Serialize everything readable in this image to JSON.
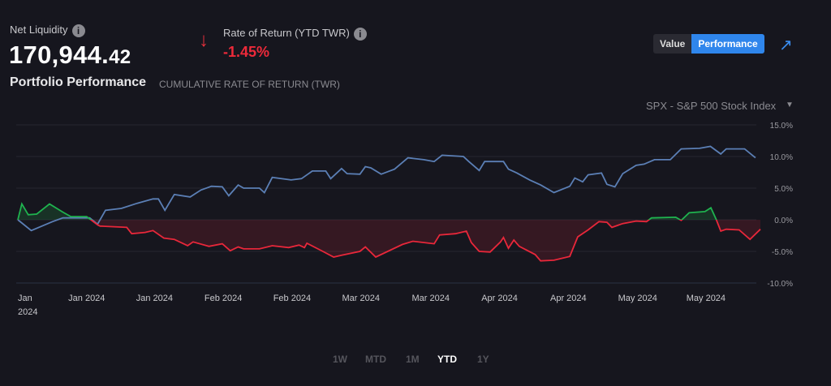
{
  "header": {
    "net_liquidity_label": "Net Liquidity",
    "net_liquidity_whole": "170,944.",
    "net_liquidity_cents": "42",
    "info_icon": "i",
    "ror_arrow": "↓",
    "ror_label": "Rate of Return (YTD TWR)",
    "ror_value": "-1.45%",
    "title": "Portfolio Performance",
    "subtitle": "CUMULATIVE RATE OF RETURN (TWR)"
  },
  "toggle": {
    "value_label": "Value",
    "performance_label": "Performance",
    "active": "Performance"
  },
  "expand_icon": "↗",
  "benchmark": {
    "selected": "SPX - S&P 500 Stock Index",
    "caret": "▼"
  },
  "ranges": [
    {
      "label": "1W",
      "active": false
    },
    {
      "label": "MTD",
      "active": false
    },
    {
      "label": "1M",
      "active": false
    },
    {
      "label": "YTD",
      "active": true
    },
    {
      "label": "1Y",
      "active": false
    }
  ],
  "colors": {
    "benchmark": "#5b7fb5",
    "positive": "#1fb34f",
    "negative": "#e8273a",
    "accent": "#2f86ec"
  },
  "chart_data": {
    "type": "line",
    "title": "Portfolio Performance",
    "ylabel": "Cumulative rate of return (%)",
    "ylim": [
      -10,
      15
    ],
    "xlim": [
      0,
      150
    ],
    "yticks": [
      {
        "v": 15,
        "label": "15.0%"
      },
      {
        "v": 10,
        "label": "10.0%"
      },
      {
        "v": 5,
        "label": "5.0%"
      },
      {
        "v": 0,
        "label": "0.0%"
      },
      {
        "v": -5,
        "label": "-5.0%"
      },
      {
        "v": -10,
        "label": "-10.0%"
      }
    ],
    "xticks": [
      {
        "d": 0,
        "label": "Jan",
        "label2": "2024"
      },
      {
        "d": 13.9,
        "label": "Jan 2024"
      },
      {
        "d": 27.6,
        "label": "Jan 2024"
      },
      {
        "d": 41.5,
        "label": "Feb 2024"
      },
      {
        "d": 55.4,
        "label": "Feb 2024"
      },
      {
        "d": 69.3,
        "label": "Mar 2024"
      },
      {
        "d": 83.4,
        "label": "Mar 2024"
      },
      {
        "d": 97.3,
        "label": "Apr 2024"
      },
      {
        "d": 111.2,
        "label": "Apr 2024"
      },
      {
        "d": 125.2,
        "label": "May 2024"
      },
      {
        "d": 139,
        "label": "May 2024"
      }
    ],
    "series": [
      {
        "name": "SPX - S&P 500 Stock Index",
        "x_days": [
          0,
          2.7,
          7,
          9.1,
          14.5,
          16.1,
          17.7,
          20.9,
          24.1,
          27.3,
          28.4,
          29.7,
          31.6,
          34.8,
          37,
          39.1,
          41.3,
          42.6,
          44.5,
          45.6,
          48.8,
          49.8,
          51.4,
          55.2,
          57.3,
          59.5,
          62.2,
          63.2,
          65.4,
          66.5,
          69.1,
          70.2,
          71.3,
          73.4,
          76.1,
          78.8,
          82,
          84.1,
          85.7,
          90,
          91.1,
          93.2,
          94.3,
          98.1,
          99.1,
          100.8,
          103.4,
          105.6,
          108.3,
          111.5,
          112.5,
          114.1,
          115.2,
          117.9,
          119,
          120.6,
          122.2,
          124.9,
          126.5,
          128.6,
          131.8,
          134,
          137.7,
          139.9,
          142,
          143.1,
          146.8,
          149
        ],
        "values": [
          0,
          -1.7,
          -0.3,
          0.3,
          0.3,
          -0.7,
          1.5,
          1.8,
          2.6,
          3.3,
          3.3,
          1.5,
          4,
          3.6,
          4.7,
          5.3,
          5.2,
          3.8,
          5.5,
          5,
          5,
          4.3,
          6.7,
          6.3,
          6.5,
          7.7,
          7.7,
          6.5,
          8.1,
          7.3,
          7.2,
          8.4,
          8.2,
          7.2,
          8,
          9.8,
          9.5,
          9.2,
          10.2,
          10,
          9.2,
          7.8,
          9.2,
          9.2,
          8,
          7.4,
          6.3,
          5.5,
          4.3,
          5.3,
          6.6,
          6,
          7.1,
          7.4,
          5.6,
          5.2,
          7.3,
          8.6,
          8.8,
          9.5,
          9.5,
          11.2,
          11.3,
          11.6,
          10.4,
          11.2,
          11.2,
          9.8
        ]
      },
      {
        "name": "Portfolio",
        "x_days": [
          0,
          0.8,
          2.1,
          3.8,
          6.4,
          9.1,
          10.7,
          13.9,
          16.1,
          16.6,
          22,
          23,
          25.7,
          27.3,
          29.5,
          31.6,
          34.3,
          35.4,
          38.6,
          41.3,
          42.9,
          44.5,
          45.6,
          48.8,
          51.4,
          54.7,
          56.8,
          57.9,
          58.4,
          61.6,
          63.8,
          65.4,
          69.1,
          70.2,
          72.3,
          77.7,
          79.8,
          84.1,
          85.2,
          88.4,
          90.6,
          91.6,
          93.2,
          95.4,
          97.5,
          98.1,
          99.1,
          100.2,
          101.3,
          104.5,
          105.6,
          108.3,
          111.5,
          113.1,
          115.2,
          117.4,
          119,
          120,
          122.2,
          124.9,
          127,
          128,
          132.9,
          134,
          135.6,
          138.8,
          140,
          141.1,
          142,
          143.1,
          145.7,
          147.9,
          150
        ],
        "values": [
          0,
          2.5,
          0.8,
          0.9,
          2.5,
          1.2,
          0.5,
          0.5,
          -0.8,
          -1,
          -1.2,
          -2.2,
          -2,
          -1.7,
          -2.9,
          -3.1,
          -4.1,
          -3.5,
          -4.2,
          -3.8,
          -4.9,
          -4.3,
          -4.6,
          -4.6,
          -4.1,
          -4.4,
          -4,
          -4.4,
          -3.7,
          -5,
          -5.9,
          -5.6,
          -5,
          -4.3,
          -5.9,
          -3.9,
          -3.4,
          -3.8,
          -2.4,
          -2.2,
          -1.8,
          -3.6,
          -5,
          -5.1,
          -3.5,
          -2.8,
          -4.5,
          -3.2,
          -4.2,
          -5.5,
          -6.5,
          -6.4,
          -5.8,
          -2.7,
          -1.6,
          -0.3,
          -0.4,
          -1.2,
          -0.6,
          -0.2,
          -0.3,
          0.3,
          0.4,
          -0.1,
          1.1,
          1.3,
          1.9,
          0,
          -1.8,
          -1.5,
          -1.6,
          -3.1,
          -1.5
        ]
      }
    ]
  }
}
